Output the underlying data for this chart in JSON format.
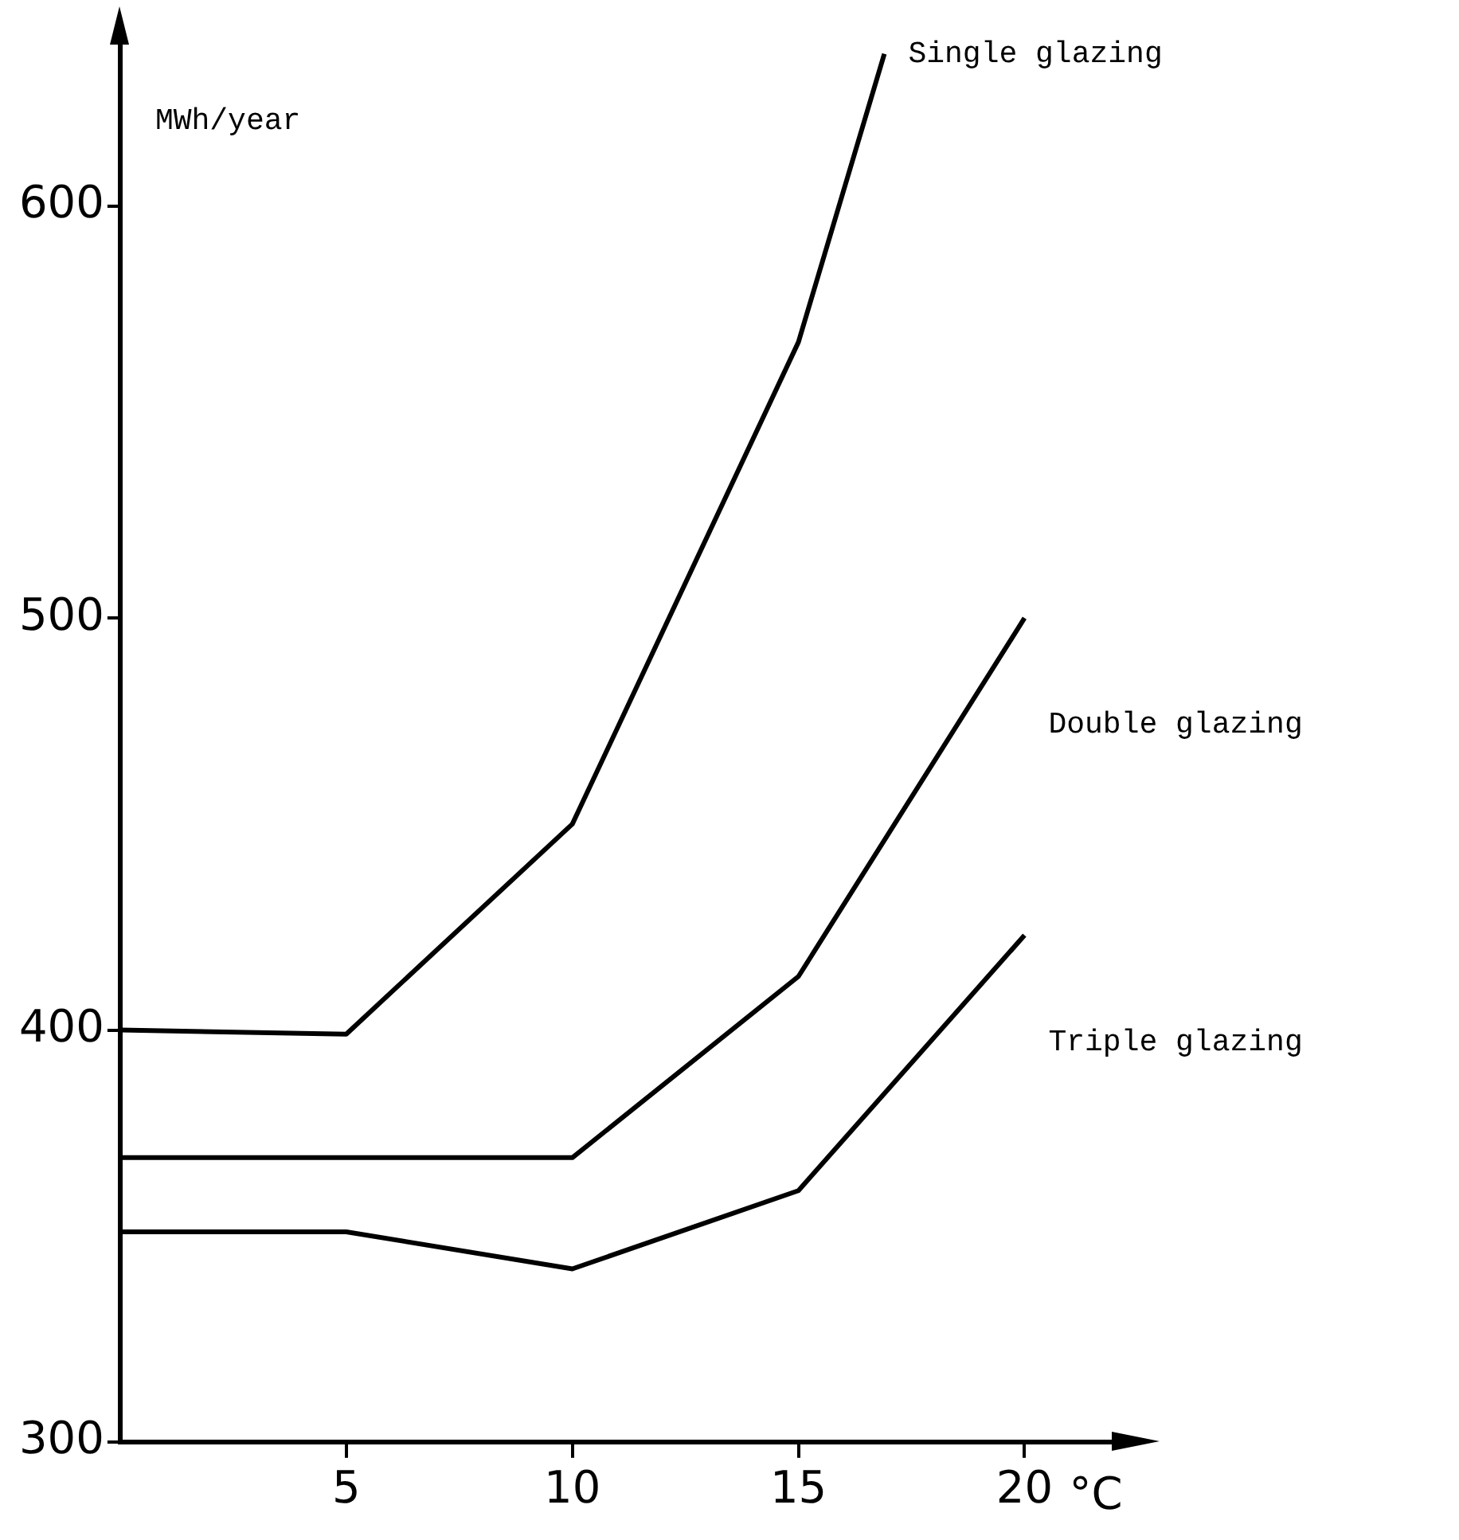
{
  "chart_data": {
    "type": "line",
    "xlabel": "°C",
    "ylabel": "MWh/year",
    "xlim": [
      0,
      22
    ],
    "xticks": [
      5,
      10,
      15,
      20
    ],
    "ylim": [
      300,
      640
    ],
    "yticks": [
      300,
      400,
      500,
      600
    ],
    "grid": false,
    "legend": false,
    "marker": "none",
    "line_style": "solid",
    "series": [
      {
        "name": "Single glazing",
        "color": "#000000",
        "x": [
          0,
          5,
          10,
          15,
          16.9
        ],
        "values": [
          400,
          399,
          450,
          567,
          637
        ]
      },
      {
        "name": "Double glazing",
        "color": "#000000",
        "x": [
          0,
          5,
          10,
          15,
          20
        ],
        "values": [
          369,
          369,
          369,
          413,
          500
        ]
      },
      {
        "name": "Triple glazing",
        "color": "#000000",
        "x": [
          0,
          5,
          10,
          15,
          20
        ],
        "values": [
          351,
          351,
          342,
          361,
          423
        ]
      }
    ]
  }
}
